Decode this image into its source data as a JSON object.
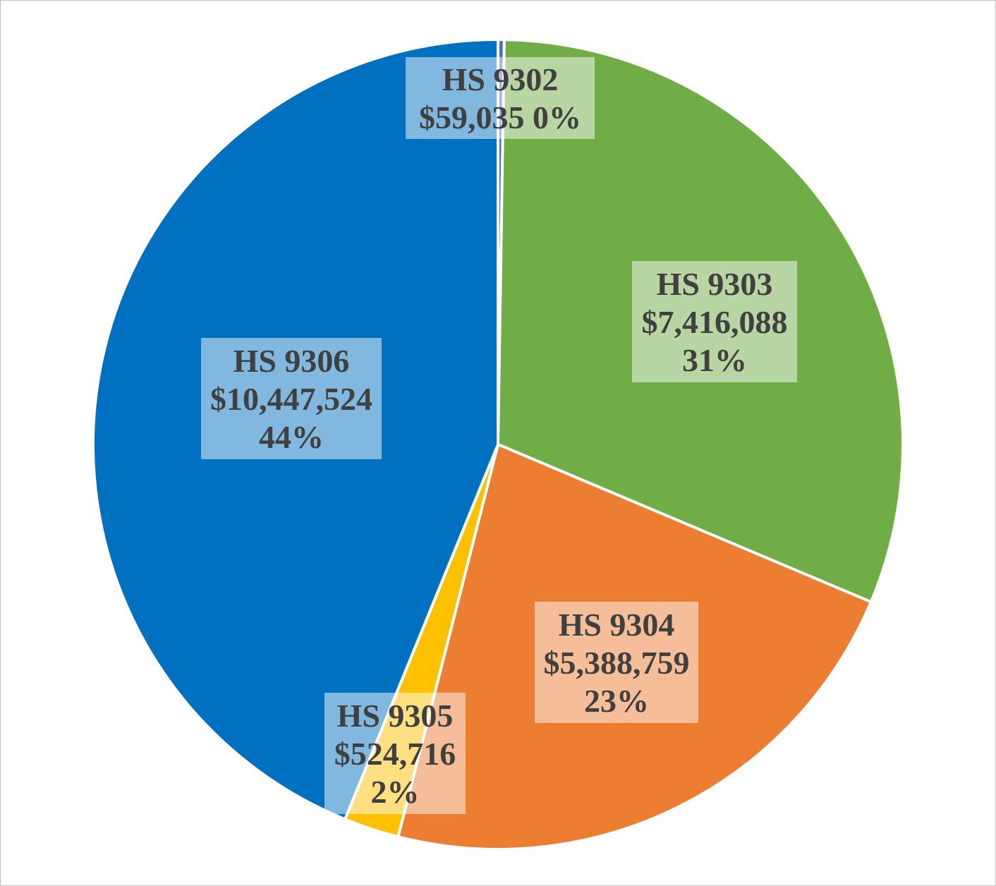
{
  "chart_data": {
    "type": "pie",
    "title": "",
    "slices": [
      {
        "label": "HS 9302",
        "value": 59035,
        "value_text": "$59,035",
        "percent_text": "0%",
        "color": "#4472c4"
      },
      {
        "label": "HS 9303",
        "value": 7416088,
        "value_text": "$7,416,088",
        "percent_text": "31%",
        "color": "#70ad47"
      },
      {
        "label": "HS 9304",
        "value": 5388759,
        "value_text": "$5,388,759",
        "percent_text": "23%",
        "color": "#ed7d31"
      },
      {
        "label": "HS 9305",
        "value": 524716,
        "value_text": "$524,716",
        "percent_text": "2%",
        "color": "#ffc000"
      },
      {
        "label": "HS 9306",
        "value": 10447524,
        "value_text": "$10,447,524",
        "percent_text": "44%",
        "color": "#0070c0"
      }
    ],
    "start_angle_deg": 0,
    "direction": "clockwise",
    "legend": "none",
    "slice_border_color": "#ffffff",
    "label_box_opacity": 0.5
  }
}
